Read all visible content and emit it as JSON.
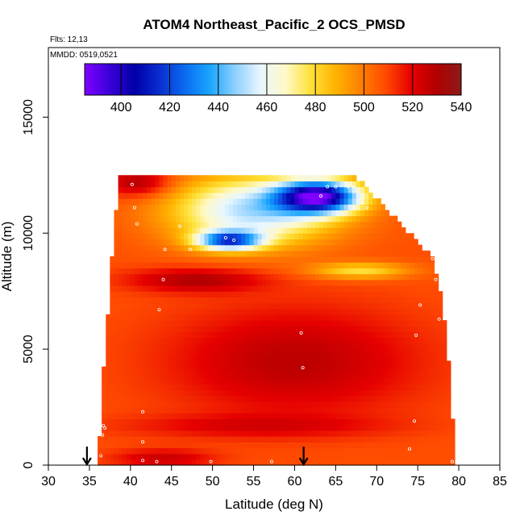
{
  "chart_data": {
    "type": "heatmap",
    "title": "ATOM4 Northeast_Pacific_2 OCS_PMSD",
    "annotations": [
      "Flts: 12,13",
      "MMDD: 0519,0521"
    ],
    "xlabel": "Latitude (deg N)",
    "ylabel": "Altitude (m)",
    "xlim": [
      30,
      85
    ],
    "ylim": [
      0,
      18000
    ],
    "x_ticks": [
      "30",
      "35",
      "40",
      "45",
      "50",
      "55",
      "60",
      "65",
      "70",
      "75",
      "80",
      "85"
    ],
    "y_ticks": [
      "0",
      "5000",
      "10000",
      "15000"
    ],
    "colorbar": {
      "range": [
        385,
        540
      ],
      "tick_labels": [
        "400",
        "420",
        "440",
        "460",
        "480",
        "500",
        "520",
        "540"
      ],
      "palette": [
        "#7f00ff",
        "#3a00d8",
        "#0000a8",
        "#0a2fd0",
        "#0a6cf0",
        "#1aa6ff",
        "#8fd0ff",
        "#e8f6ff",
        "#fff9c8",
        "#ffe23a",
        "#ffb300",
        "#ff8000",
        "#ff4a00",
        "#e60000",
        "#b30000",
        "#8b1a1a"
      ]
    },
    "x_range_by_altitude": [
      {
        "altitude": 0,
        "lat_min": 36.2,
        "lat_max": 79.5
      },
      {
        "altitude": 2000,
        "lat_min": 36.7,
        "lat_max": 79.0
      },
      {
        "altitude": 5000,
        "lat_min": 37.1,
        "lat_max": 78.4
      },
      {
        "altitude": 7000,
        "lat_min": 37.6,
        "lat_max": 77.8
      },
      {
        "altitude": 9000,
        "lat_min": 38.0,
        "lat_max": 76.5
      },
      {
        "altitude": 10500,
        "lat_min": 38.4,
        "lat_max": 72.5
      },
      {
        "altitude": 11800,
        "lat_min": 38.7,
        "lat_max": 69.0
      },
      {
        "altitude": 12500,
        "lat_min": 39.0,
        "lat_max": 67.0
      }
    ],
    "field_features": [
      {
        "name": "background",
        "value": 508
      },
      {
        "name": "mid-troposphere maximum",
        "lat_center": 60,
        "alt_center": 4500,
        "lat_radius": 15,
        "alt_radius": 2300,
        "value": 528
      },
      {
        "name": "dark band",
        "lat_center": 48,
        "alt_center": 8000,
        "lat_radius": 8,
        "alt_radius": 500,
        "value": 530
      },
      {
        "name": "low altitude maximum",
        "lat_center": 44,
        "alt_center": 300,
        "lat_radius": 6,
        "alt_radius": 400,
        "value": 525
      },
      {
        "name": "upper minimum",
        "lat_center": 63,
        "alt_center": 11600,
        "lat_radius": 5,
        "alt_radius": 700,
        "value": 405
      },
      {
        "name": "upper low",
        "lat_center": 55,
        "alt_center": 11000,
        "lat_radius": 10,
        "alt_radius": 1500,
        "value": 450
      },
      {
        "name": "mid low",
        "lat_center": 52,
        "alt_center": 9700,
        "lat_radius": 4,
        "alt_radius": 400,
        "value": 435
      },
      {
        "name": "pale layer",
        "lat_center": 68,
        "alt_center": 8400,
        "lat_radius": 6,
        "alt_radius": 350,
        "value": 478
      },
      {
        "name": "upper high",
        "lat_center": 41,
        "alt_center": 12200,
        "lat_radius": 4,
        "alt_radius": 600,
        "value": 532
      },
      {
        "name": "low band",
        "lat_center": 55,
        "alt_center": 1700,
        "lat_radius": 16,
        "alt_radius": 500,
        "value": 520
      }
    ],
    "sample_points": [
      {
        "lat": 40.2,
        "alt": 12100
      },
      {
        "lat": 40.5,
        "alt": 11100
      },
      {
        "lat": 40.8,
        "alt": 10400
      },
      {
        "lat": 44.2,
        "alt": 9300
      },
      {
        "lat": 44.0,
        "alt": 8000
      },
      {
        "lat": 43.5,
        "alt": 6700
      },
      {
        "lat": 41.5,
        "alt": 2300
      },
      {
        "lat": 41.5,
        "alt": 1000
      },
      {
        "lat": 36.7,
        "alt": 1700
      },
      {
        "lat": 36.6,
        "alt": 1300
      },
      {
        "lat": 36.4,
        "alt": 400
      },
      {
        "lat": 41.5,
        "alt": 200
      },
      {
        "lat": 43.2,
        "alt": 150
      },
      {
        "lat": 49.8,
        "alt": 150
      },
      {
        "lat": 57.2,
        "alt": 150
      },
      {
        "lat": 46.0,
        "alt": 10300
      },
      {
        "lat": 47.3,
        "alt": 9300
      },
      {
        "lat": 51.6,
        "alt": 9800
      },
      {
        "lat": 52.6,
        "alt": 9700
      },
      {
        "lat": 63.2,
        "alt": 11600
      },
      {
        "lat": 64.0,
        "alt": 12000
      },
      {
        "lat": 65.0,
        "alt": 12000
      },
      {
        "lat": 66.5,
        "alt": 12000
      },
      {
        "lat": 67.2,
        "alt": 12000
      },
      {
        "lat": 68.8,
        "alt": 11100
      },
      {
        "lat": 60.8,
        "alt": 5700
      },
      {
        "lat": 61.0,
        "alt": 4200
      },
      {
        "lat": 74.8,
        "alt": 5600
      },
      {
        "lat": 75.3,
        "alt": 6900
      },
      {
        "lat": 77.6,
        "alt": 6300
      },
      {
        "lat": 76.8,
        "alt": 8900
      },
      {
        "lat": 77.2,
        "alt": 8000
      },
      {
        "lat": 74.6,
        "alt": 1900
      },
      {
        "lat": 74.0,
        "alt": 700
      },
      {
        "lat": 79.2,
        "alt": 150
      },
      {
        "lat": 36.9,
        "alt": 1600
      }
    ],
    "arrows": [
      {
        "lat": 34.7,
        "alt": 0
      },
      {
        "lat": 61.1,
        "alt": 0
      }
    ]
  }
}
